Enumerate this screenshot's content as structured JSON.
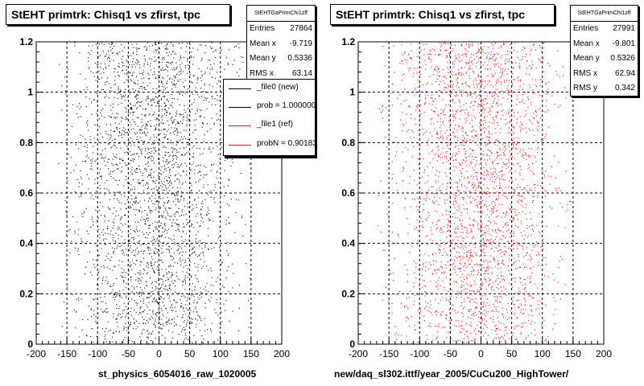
{
  "chart_data": [
    {
      "type": "scatter",
      "title": "StEHT primtrk: Chisq1 vs zfirst, tpc",
      "xlabel": "st_physics_6054016_raw_1020005",
      "ylabel": "",
      "xlim": [
        -200,
        200
      ],
      "ylim": [
        0,
        1.2
      ],
      "x_ticks": [
        "-200",
        "-150",
        "-100",
        "-50",
        "0",
        "50",
        "100",
        "150",
        "200"
      ],
      "y_ticks": [
        "0",
        "0.2",
        "0.4",
        "0.6",
        "0.8",
        "1",
        "1.2"
      ],
      "grid": true,
      "marker_color": "#000000",
      "stats": {
        "name": "StEHTGaPrimChi1zff",
        "rows": [
          {
            "label": "Entries",
            "value": "27864"
          },
          {
            "label": "Mean x",
            "value": "-9.719"
          },
          {
            "label": "Mean y",
            "value": "0.5336"
          },
          {
            "label": "RMS x",
            "value": "63.14"
          }
        ]
      },
      "legend": {
        "placement": "top-right",
        "entries": [
          {
            "label": "_file0 (new)",
            "color": "#000000"
          },
          {
            "label": "prob = 1.000000",
            "color": "#000000"
          },
          {
            "label": "_file1 (ref)",
            "color": "#ff0000"
          },
          {
            "label": "probN = 0.901830",
            "color": "#ff0000"
          }
        ]
      },
      "distribution": {
        "x_mean": -9.719,
        "x_rms": 63.14,
        "y_mean": 0.5336,
        "count": 2800
      }
    },
    {
      "type": "scatter",
      "title": "StEHT primtrk: Chisq1 vs zfirst, tpc",
      "xlabel": "new/daq_sl302.ittf/year_2005/CuCu200_HighTower/",
      "ylabel": "",
      "xlim": [
        -200,
        200
      ],
      "ylim": [
        0,
        1.2
      ],
      "x_ticks": [
        "-200",
        "-150",
        "-100",
        "-50",
        "0",
        "50",
        "100",
        "150",
        "200"
      ],
      "y_ticks": [
        "0",
        "0.2",
        "0.4",
        "0.6",
        "0.8",
        "1",
        "1.2"
      ],
      "grid": true,
      "marker_color": "#ff0000",
      "stats": {
        "name": "StEHTGaPrimChi1zff",
        "rows": [
          {
            "label": "Entries",
            "value": "27991"
          },
          {
            "label": "Mean x",
            "value": "-9.801"
          },
          {
            "label": "Mean y",
            "value": "0.5326"
          },
          {
            "label": "RMS x",
            "value": "62.94"
          },
          {
            "label": "RMS y",
            "value": "0.342"
          }
        ]
      },
      "distribution": {
        "x_mean": -9.801,
        "x_rms": 62.94,
        "y_mean": 0.5326,
        "count": 2800
      }
    }
  ]
}
